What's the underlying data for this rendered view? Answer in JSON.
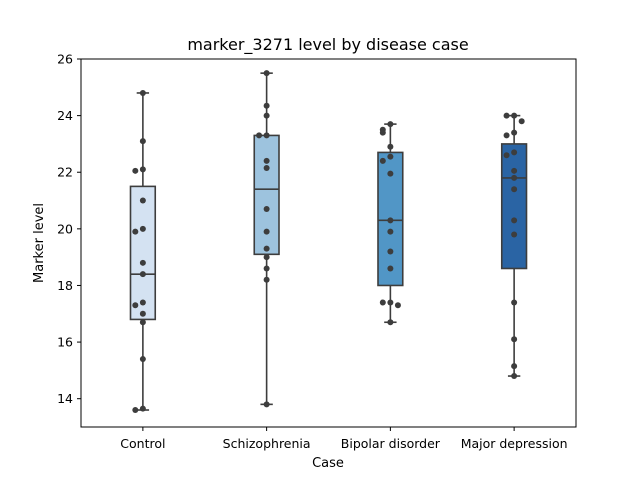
{
  "chart_data": {
    "type": "box",
    "title": "marker_3271 level by disease case",
    "xlabel": "Case",
    "ylabel": "Marker level",
    "ylim": [
      13,
      26
    ],
    "yticks": [
      14,
      16,
      18,
      20,
      22,
      24,
      26
    ],
    "grid": false,
    "categories": [
      "Control",
      "Schizophrenia",
      "Bipolar disorder",
      "Major depression"
    ],
    "colors": [
      "#d4e2f2",
      "#9dc3de",
      "#5196c6",
      "#2a64a4"
    ],
    "boxes": [
      {
        "category": "Control",
        "whisker_low": 13.6,
        "q1": 16.8,
        "median": 18.4,
        "q3": 21.5,
        "whisker_high": 24.8
      },
      {
        "category": "Schizophrenia",
        "whisker_low": 13.8,
        "q1": 19.1,
        "median": 21.4,
        "q3": 23.3,
        "whisker_high": 25.5
      },
      {
        "category": "Bipolar disorder",
        "whisker_low": 16.7,
        "q1": 18.0,
        "median": 20.3,
        "q3": 22.7,
        "whisker_high": 23.7
      },
      {
        "category": "Major depression",
        "whisker_low": 14.8,
        "q1": 18.6,
        "median": 21.8,
        "q3": 23.0,
        "whisker_high": 24.0
      }
    ],
    "points": [
      {
        "category": "Control",
        "values": [
          24.8,
          23.1,
          22.1,
          22.05,
          21.0,
          20.0,
          19.9,
          18.8,
          18.4,
          17.4,
          17.3,
          17.0,
          16.7,
          15.4,
          13.65,
          13.6
        ]
      },
      {
        "category": "Schizophrenia",
        "values": [
          25.5,
          24.35,
          24.0,
          23.3,
          23.3,
          22.4,
          22.15,
          20.7,
          19.9,
          19.3,
          19.0,
          18.6,
          18.2,
          13.8
        ]
      },
      {
        "category": "Bipolar disorder",
        "values": [
          23.7,
          23.5,
          23.4,
          22.9,
          22.55,
          22.4,
          21.95,
          20.3,
          19.9,
          19.2,
          18.6,
          17.4,
          17.4,
          17.3,
          16.7
        ]
      },
      {
        "category": "Major depression",
        "values": [
          24.0,
          24.0,
          23.8,
          23.4,
          23.3,
          22.7,
          22.6,
          22.05,
          21.8,
          21.4,
          20.3,
          19.8,
          17.4,
          16.1,
          15.15,
          14.8
        ]
      }
    ]
  }
}
